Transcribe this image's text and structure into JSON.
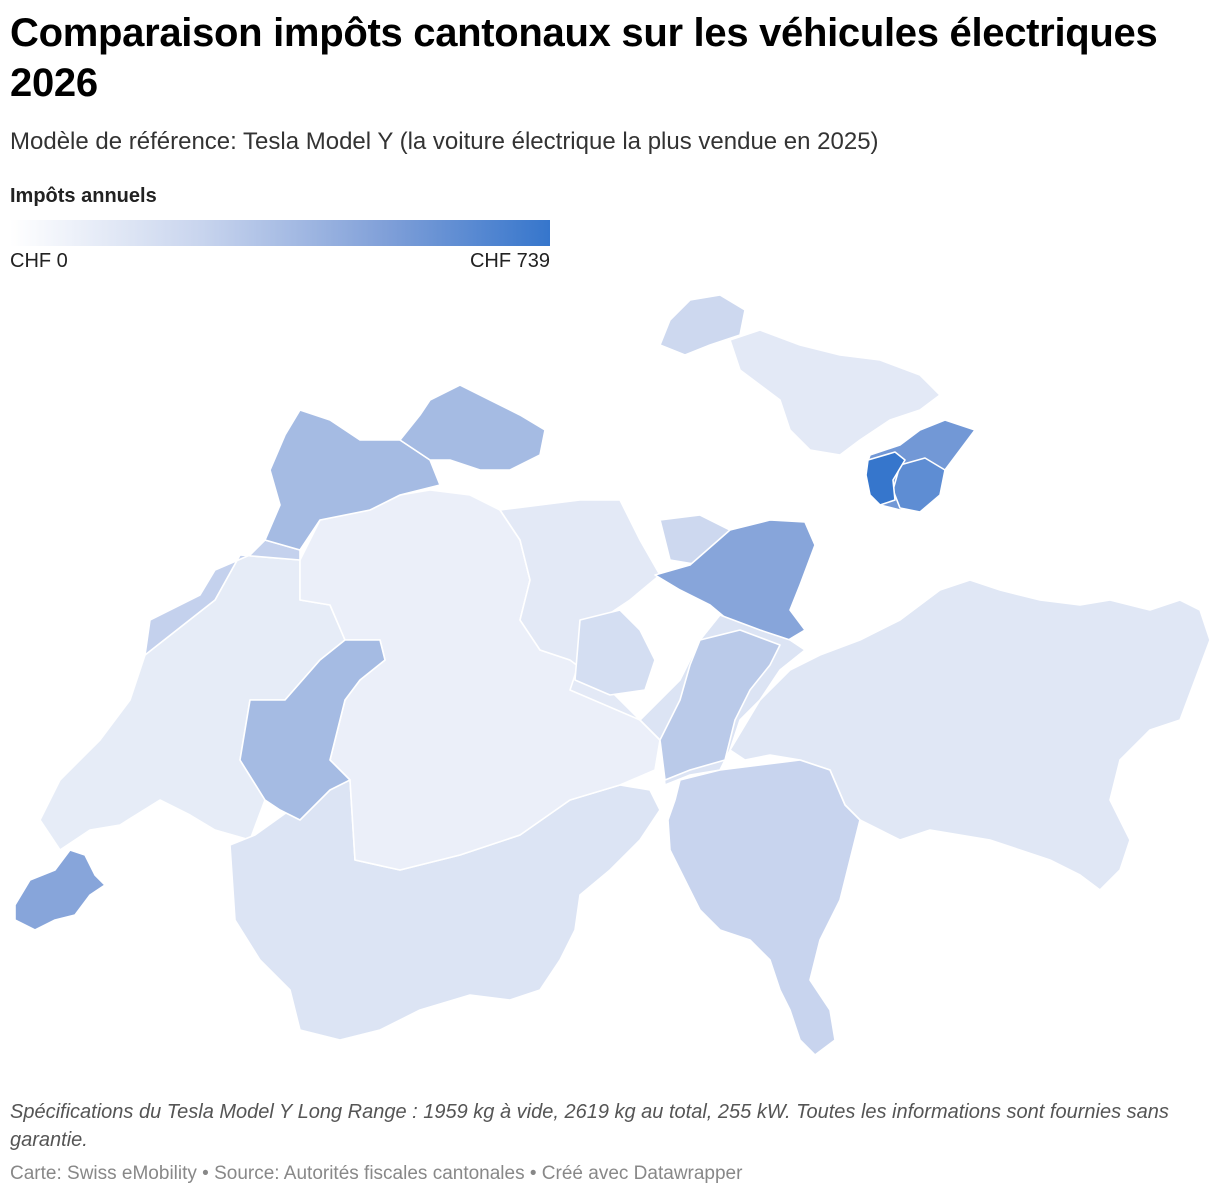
{
  "header": {
    "title": "Comparaison impôts cantonaux sur les véhicules électriques 2026",
    "subtitle": "Modèle de référence: Tesla Model Y (la voiture électrique la plus vendue en 2025)"
  },
  "legend": {
    "title": "Impôts annuels",
    "min_label": "CHF 0",
    "max_label": "CHF 739",
    "min_value": 0,
    "max_value": 739,
    "colors": [
      "#ffffff",
      "#c9d5ee",
      "#7f9fd8",
      "#3676cc"
    ]
  },
  "map": {
    "type": "choropleth",
    "region_fill_levels": [
      {
        "region": "schaffhouse-region",
        "level": 0.25
      },
      {
        "region": "thurgovie-region",
        "level": 0.1
      },
      {
        "region": "appenzell-region",
        "level": 1.0
      },
      {
        "region": "appenzell-small-region",
        "level": 0.8
      },
      {
        "region": "saint-gall-region",
        "level": 0.7
      },
      {
        "region": "glaris-region",
        "level": 0.35
      },
      {
        "region": "grisons-region",
        "level": 0.12
      },
      {
        "region": "tessin-region",
        "level": 0.28
      },
      {
        "region": "uri-region",
        "level": 0.15
      },
      {
        "region": "schwyz-region",
        "level": 0.6
      },
      {
        "region": "zurich-lake-region",
        "level": 0.25
      },
      {
        "region": "lucerne-region",
        "level": 0.1
      },
      {
        "region": "zoug-region",
        "level": 0.2
      },
      {
        "region": "berne-region",
        "level": 0.05
      },
      {
        "region": "valais-region",
        "level": 0.15
      },
      {
        "region": "vaud-region",
        "level": 0.08
      },
      {
        "region": "fribourg-region",
        "level": 0.45
      },
      {
        "region": "neuchatel-region",
        "level": 0.3
      },
      {
        "region": "jura-region",
        "level": 0.45
      },
      {
        "region": "bale-region",
        "level": 0.45
      },
      {
        "region": "geneve-region",
        "level": 0.6
      }
    ]
  },
  "footer": {
    "note": " Spécifications du Tesla Model Y Long Range : 1959 kg à vide, 2619 kg au total, 255 kW. Toutes les informations sont fournies sans garantie.",
    "credits": "Carte: Swiss eMobility • Source: Autorités fiscales cantonales • Créé avec Datawrapper"
  }
}
